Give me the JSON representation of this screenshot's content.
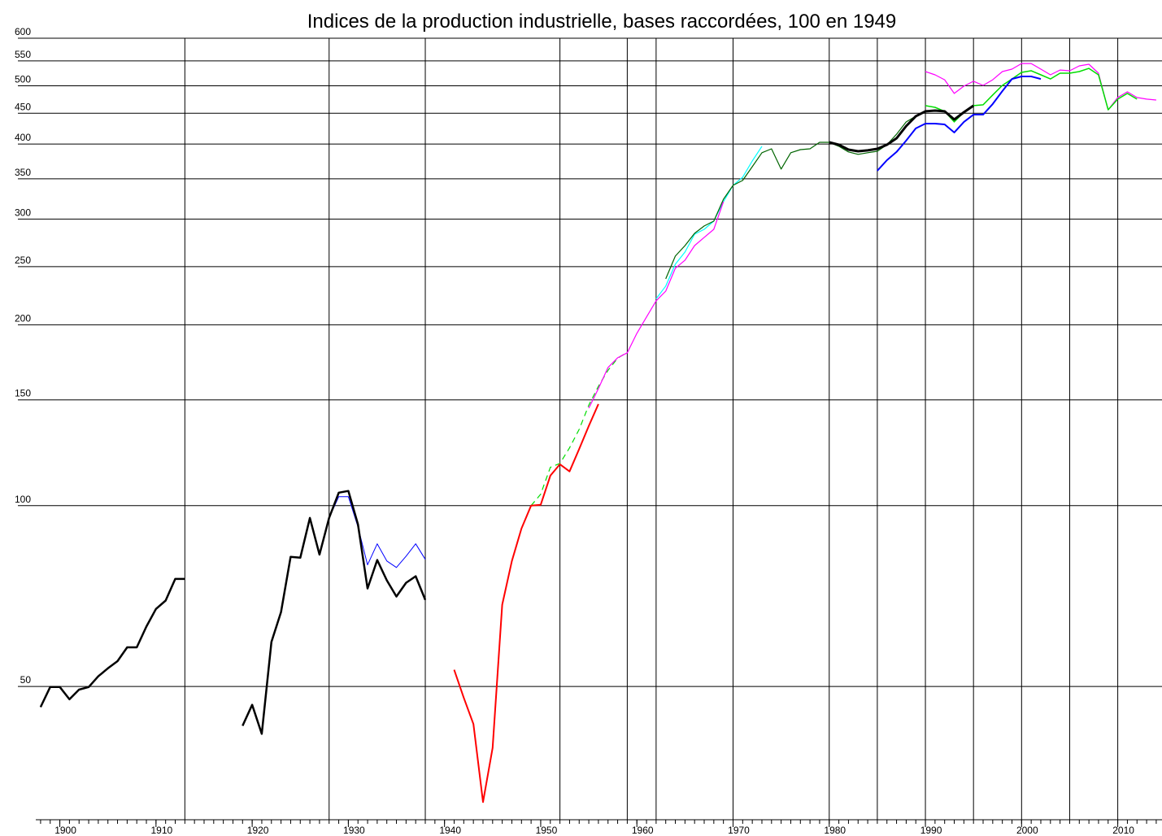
{
  "chart_data": {
    "type": "line",
    "title": "Indices de la production industrielle, bases raccordées, 100 en 1949",
    "log_y": true,
    "grid": true,
    "xlim": [
      1897.5,
      2014.6
    ],
    "ylim": [
      30,
      600
    ],
    "yticks": [
      50,
      100,
      150,
      200,
      250,
      300,
      350,
      400,
      450,
      500,
      550,
      600
    ],
    "xticks": [
      1900,
      1910,
      1920,
      1930,
      1940,
      1950,
      1960,
      1970,
      1980,
      1990,
      2000,
      2010
    ],
    "minor_xticks": [
      1898,
      1899,
      1900,
      1901,
      1902,
      1903,
      1904,
      1905,
      1906,
      1907,
      1908,
      1909,
      1910,
      1911,
      1912,
      1913,
      1914,
      1915,
      1916,
      1917,
      1918,
      1919,
      1920,
      1921,
      1922,
      1923,
      1924,
      1925,
      1926,
      1927,
      1928,
      1929,
      1930,
      1931,
      1932,
      1933,
      1934,
      1935,
      1936,
      1937,
      1938,
      1939,
      1940,
      1941,
      1942,
      1943,
      1944,
      1945,
      1946,
      1947,
      1948,
      1949,
      1950,
      1951,
      1952,
      1953,
      1954,
      1955,
      1956,
      1957,
      1958,
      1959,
      1960,
      1961,
      1962,
      1963,
      1964,
      1965,
      1966,
      1967,
      1968,
      1969,
      1970,
      1971,
      1972,
      1973,
      1974,
      1975,
      1976,
      1977,
      1978,
      1979,
      1980,
      1981,
      1982,
      1983,
      1984,
      1985,
      1986,
      1987,
      1988,
      1989,
      1990,
      1991,
      1992,
      1993,
      1994,
      1995,
      1996,
      1997,
      1998,
      1999,
      2000,
      2001,
      2002,
      2003,
      2004,
      2005,
      2006,
      2007,
      2008,
      2009,
      2010,
      2011,
      2012,
      2013,
      2014
    ],
    "xgrid": [
      1913,
      1928,
      1938,
      1952,
      1959,
      1962,
      1970,
      1980,
      1985,
      1990,
      1995,
      2000,
      2005,
      2010
    ],
    "series": [
      {
        "color": "#000000",
        "width": 2.5,
        "x": [
          1898,
          1899,
          1900,
          1901,
          1902,
          1903,
          1904,
          1905,
          1906,
          1907,
          1908,
          1909,
          1910,
          1911,
          1912,
          1913
        ],
        "values": [
          46.2,
          49.9,
          49.9,
          47.6,
          49.4,
          49.9,
          52.0,
          53.6,
          55.1,
          58.1,
          58.1,
          62.9,
          67.3,
          69.5,
          75.5,
          75.5
        ]
      },
      {
        "color": "#0000ff",
        "width": 1,
        "x": [
          1928,
          1929,
          1930,
          1931,
          1932,
          1933,
          1934,
          1935,
          1936,
          1937,
          1938
        ],
        "values": [
          95.4,
          103.5,
          103.5,
          92.2,
          79.7,
          86.4,
          80.9,
          78.9,
          82.4,
          86.4,
          81.4
        ]
      },
      {
        "color": "#000000",
        "width": 2.5,
        "x": [
          1919,
          1920,
          1921,
          1922,
          1923,
          1924,
          1925,
          1926,
          1927,
          1928,
          1929,
          1930,
          1931,
          1932,
          1933,
          1934,
          1935,
          1936,
          1937,
          1938
        ],
        "values": [
          43.0,
          46.6,
          41.7,
          59.3,
          66.5,
          82.2,
          81.9,
          95.4,
          82.9,
          95.4,
          105.1,
          105.8,
          93.1,
          72.8,
          81.2,
          75.1,
          70.6,
          74.4,
          76.3,
          69.7
        ]
      },
      {
        "color": "#00dd00",
        "width": 1.2,
        "dash": true,
        "x": [
          1949,
          1950,
          1951,
          1952,
          1953,
          1954,
          1955,
          1956,
          1957,
          1958,
          1959
        ],
        "values": [
          100,
          104.5,
          115.8,
          117.6,
          124.8,
          134,
          147,
          158,
          168,
          176,
          180
        ]
      },
      {
        "color": "#ff0000",
        "width": 2,
        "x": [
          1941,
          1942,
          1943,
          1944,
          1945,
          1946,
          1947,
          1948,
          1949,
          1950,
          1951,
          1952,
          1953,
          1954,
          1955,
          1956
        ],
        "values": [
          53.3,
          47.9,
          43.3,
          32.1,
          39.5,
          68.4,
          80.9,
          91.6,
          100,
          100.3,
          112.2,
          117.2,
          114.0,
          124.3,
          135.7,
          147.6
        ]
      },
      {
        "color": "#00ffff",
        "width": 1.2,
        "x": [
          1962,
          1963,
          1964,
          1965,
          1966,
          1967,
          1968,
          1969,
          1970,
          1971,
          1972,
          1973
        ],
        "values": [
          221.0,
          232.0,
          252.3,
          264.4,
          283.1,
          288.4,
          297.6,
          320.7,
          341.4,
          352.2,
          374.7,
          396.5
        ]
      },
      {
        "color": "#ff00ff",
        "width": 1.2,
        "x": [
          1955,
          1956,
          1957,
          1958,
          1959,
          1960,
          1961,
          1962,
          1963,
          1964,
          1965,
          1966,
          1967,
          1968,
          1969
        ],
        "values": [
          145.3,
          156.6,
          169.8,
          176.3,
          179.7,
          193.6,
          206,
          219.3,
          227.6,
          248.4,
          256.3,
          271,
          279.6,
          288.4,
          320.7
        ]
      },
      {
        "color": "#006400",
        "width": 1.2,
        "x": [
          1963,
          1964,
          1965,
          1966,
          1967,
          1968,
          1969,
          1970,
          1971,
          1972,
          1973,
          1974,
          1975,
          1976,
          1977,
          1978,
          1979,
          1980,
          1981,
          1982,
          1983,
          1984,
          1985,
          1986,
          1987,
          1988,
          1989
        ],
        "values": [
          238.5,
          260.3,
          271,
          284,
          292.1,
          297.6,
          323.7,
          341.4,
          347.8,
          366.7,
          386.8,
          392.7,
          363.3,
          386.8,
          391.5,
          392.7,
          402.6,
          402.6,
          396.5,
          388,
          384.4,
          386.8,
          389,
          398.9,
          415.3,
          435.3,
          444.9
        ]
      },
      {
        "color": "#ff00ff",
        "width": 1.2,
        "x": [
          1990,
          1991,
          1992,
          1993,
          1994,
          1995,
          1996,
          1997,
          1998,
          1999,
          2000,
          2001,
          2002,
          2003,
          2004,
          2005,
          2006,
          2007,
          2008,
          2009,
          2010,
          2011,
          2012,
          2013,
          2014
        ],
        "values": [
          528,
          521.5,
          511.7,
          485.6,
          499.3,
          508.8,
          500.8,
          511.7,
          528,
          532.9,
          544.6,
          544.6,
          532.9,
          521.5,
          531.2,
          529.6,
          539.6,
          543,
          524.7,
          456.1,
          478,
          488.6,
          478,
          475.1,
          473.5
        ]
      },
      {
        "color": "#00dd00",
        "width": 1.5,
        "x": [
          1990,
          1991,
          1992,
          1993,
          1994,
          1995,
          1996,
          1997,
          1998,
          1999,
          2000,
          2001,
          2002,
          2003,
          2004,
          2005,
          2006,
          2007,
          2008,
          2009,
          2010,
          2011,
          2012
        ],
        "values": [
          463.3,
          460.3,
          453.3,
          435.3,
          451.8,
          463.3,
          464.8,
          482.6,
          500.8,
          513.3,
          526.3,
          529.6,
          521.5,
          513.3,
          524.7,
          524.7,
          528,
          534.5,
          521.5,
          456.1,
          475.1,
          485.6,
          475.1
        ]
      },
      {
        "color": "#0000ff",
        "width": 2,
        "x": [
          1985,
          1986,
          1987,
          1988,
          1989,
          1990,
          1991,
          1992,
          1993,
          1994,
          1995,
          1996,
          1997,
          1998,
          1999,
          2000,
          2001,
          2002
        ],
        "values": [
          361.1,
          375.9,
          388,
          405.2,
          424.6,
          432.5,
          432.5,
          431.2,
          418,
          435.3,
          447.7,
          447.7,
          466.2,
          489.9,
          513.3,
          518.2,
          518.2,
          513.3
        ]
      },
      {
        "color": "#000000",
        "width": 3,
        "x": [
          1980,
          1981,
          1982,
          1983,
          1984,
          1985,
          1986,
          1987,
          1988,
          1989,
          1990,
          1991,
          1992,
          1993,
          1994,
          1995
        ],
        "values": [
          402.6,
          398.9,
          391.5,
          389,
          390.3,
          392.7,
          398.9,
          408.9,
          428.5,
          444.9,
          453.3,
          454.7,
          453.3,
          439.4,
          451.8,
          463.3
        ]
      }
    ]
  }
}
